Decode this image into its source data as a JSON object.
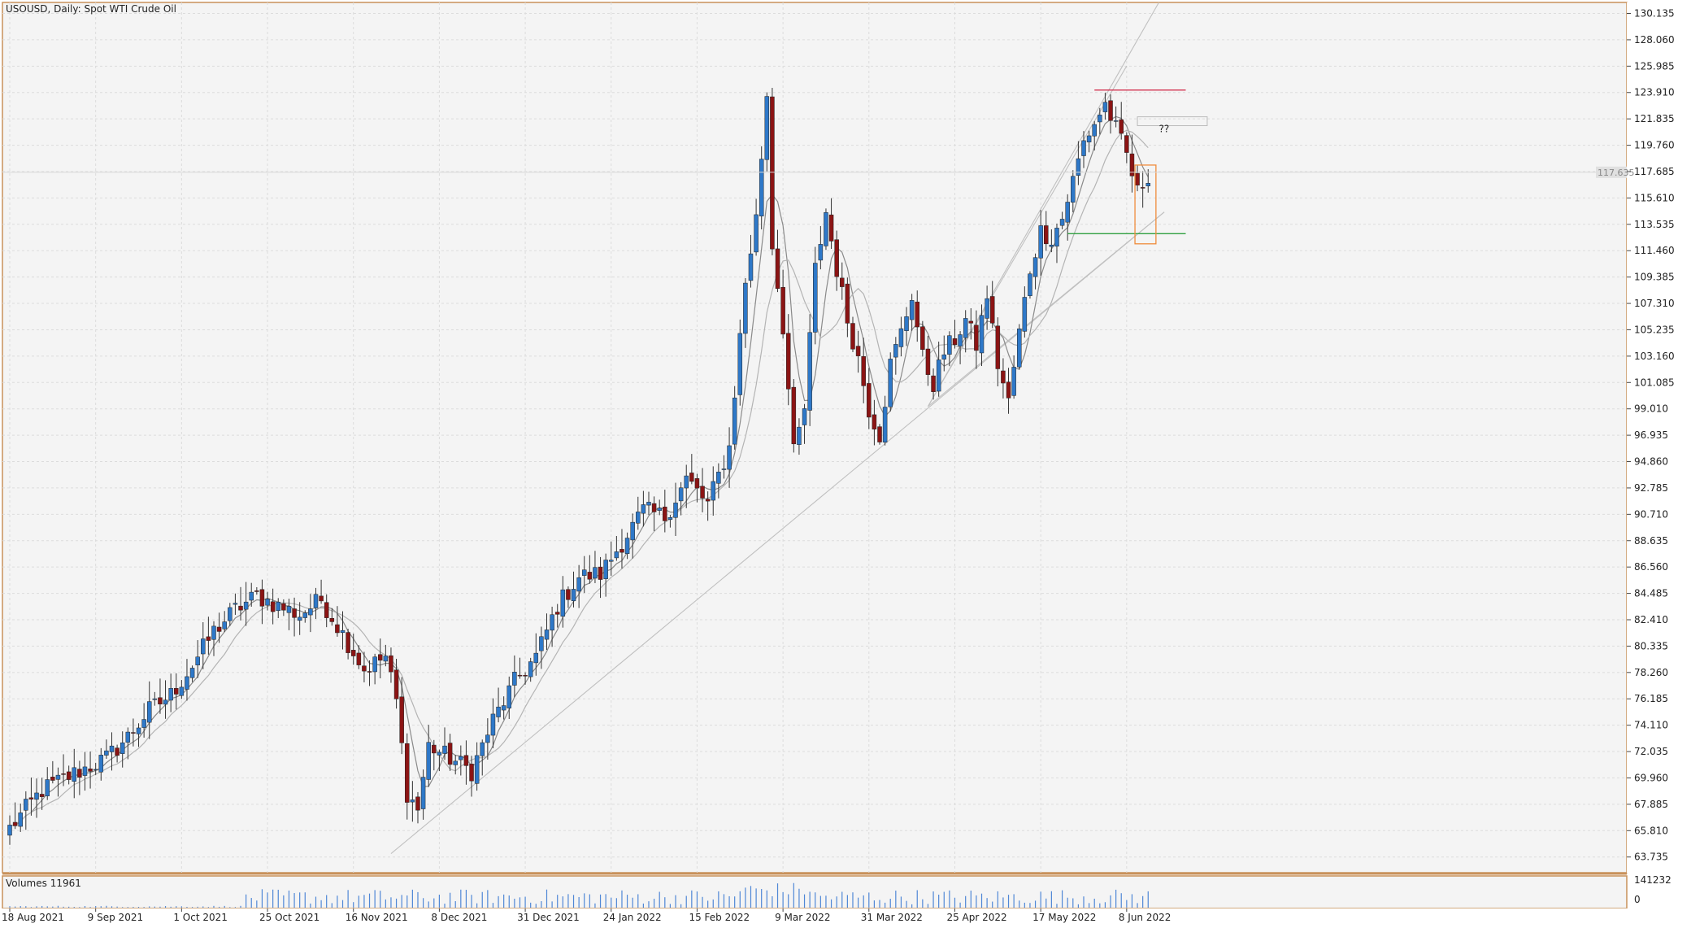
{
  "header": {
    "title": "USOUSD, Daily:  Spot WTI Crude Oil"
  },
  "volume_panel": {
    "label": "Volumes 11961",
    "scale_max": "141232",
    "scale_min": "0"
  },
  "annotations": {
    "question_label": "??",
    "current_price_label": "117.635"
  },
  "colors": {
    "background": "#f4f4f4",
    "frame": "#c8915a",
    "bull": "#2e78c8",
    "bear": "#8b1414",
    "ma": "#9a9a9a",
    "trendline": "#c0c0c0",
    "resistance": "#d02040",
    "support": "#30a040",
    "highlight_box": "#f08c3c",
    "volume": "#4f87d6"
  },
  "chart_data": {
    "type": "candlestick",
    "symbol": "USOUSD",
    "timeframe": "Daily",
    "ylim": [
      62.5,
      131.0
    ],
    "y_ticks": [
      "130.135",
      "128.060",
      "125.985",
      "123.910",
      "121.835",
      "119.760",
      "117.685",
      "115.610",
      "113.535",
      "111.460",
      "109.385",
      "107.310",
      "105.235",
      "103.160",
      "101.085",
      "99.010",
      "96.935",
      "94.860",
      "92.785",
      "90.710",
      "88.635",
      "86.560",
      "84.485",
      "82.410",
      "80.335",
      "78.260",
      "76.185",
      "74.110",
      "72.035",
      "69.960",
      "67.885",
      "65.810",
      "63.735"
    ],
    "x_labels": [
      "18 Aug 2021",
      "9 Sep 2021",
      "1 Oct 2021",
      "25 Oct 2021",
      "16 Nov 2021",
      "8 Dec 2021",
      "31 Dec 2021",
      "24 Jan 2022",
      "15 Feb 2022",
      "9 Mar 2022",
      "31 Mar 2022",
      "25 Apr 2022",
      "17 May 2022",
      "8 Jun 2022"
    ],
    "x_label_bar_index": [
      0,
      16,
      32,
      48,
      64,
      80,
      96,
      112,
      128,
      144,
      160,
      176,
      192,
      208
    ],
    "anchors": [
      [
        0,
        66.0
      ],
      [
        6,
        69.0
      ],
      [
        12,
        70.3
      ],
      [
        18,
        71.5
      ],
      [
        22,
        73.2
      ],
      [
        26,
        75.3
      ],
      [
        30,
        76.5
      ],
      [
        34,
        78.8
      ],
      [
        38,
        81.5
      ],
      [
        42,
        83.2
      ],
      [
        46,
        84.3
      ],
      [
        50,
        83.5
      ],
      [
        54,
        82.8
      ],
      [
        58,
        84.0
      ],
      [
        62,
        81.3
      ],
      [
        66,
        78.5
      ],
      [
        70,
        79.5
      ],
      [
        72,
        76.0
      ],
      [
        74,
        68.8
      ],
      [
        76,
        67.5
      ],
      [
        78,
        72.5
      ],
      [
        82,
        71.5
      ],
      [
        86,
        70.5
      ],
      [
        90,
        74.5
      ],
      [
        94,
        77.5
      ],
      [
        98,
        79.5
      ],
      [
        102,
        83.5
      ],
      [
        106,
        85.8
      ],
      [
        110,
        86.0
      ],
      [
        114,
        88.5
      ],
      [
        118,
        91.0
      ],
      [
        122,
        90.5
      ],
      [
        126,
        93.5
      ],
      [
        130,
        91.5
      ],
      [
        134,
        96.0
      ],
      [
        137,
        109.0
      ],
      [
        139,
        114.0
      ],
      [
        141,
        123.8
      ],
      [
        142,
        112.0
      ],
      [
        144,
        105.5
      ],
      [
        146,
        95.5
      ],
      [
        148,
        99.0
      ],
      [
        150,
        110.0
      ],
      [
        152,
        114.5
      ],
      [
        154,
        110.0
      ],
      [
        156,
        106.0
      ],
      [
        158,
        103.0
      ],
      [
        160,
        99.0
      ],
      [
        162,
        97.0
      ],
      [
        164,
        102.5
      ],
      [
        166,
        105.0
      ],
      [
        168,
        108.0
      ],
      [
        170,
        103.0
      ],
      [
        172,
        101.0
      ],
      [
        174,
        103.5
      ],
      [
        176,
        104.5
      ],
      [
        178,
        106.0
      ],
      [
        180,
        104.0
      ],
      [
        182,
        108.0
      ],
      [
        184,
        102.5
      ],
      [
        186,
        99.5
      ],
      [
        188,
        105.0
      ],
      [
        190,
        110.0
      ],
      [
        192,
        113.0
      ],
      [
        194,
        112.5
      ],
      [
        196,
        114.0
      ],
      [
        198,
        117.0
      ],
      [
        200,
        120.0
      ],
      [
        202,
        121.5
      ],
      [
        204,
        123.0
      ],
      [
        206,
        121.0
      ],
      [
        208,
        119.0
      ],
      [
        210,
        116.0
      ],
      [
        212,
        117.5
      ]
    ],
    "moving_averages": [
      {
        "period": 5,
        "style": "dark-gray"
      },
      {
        "period": 10,
        "style": "light-gray"
      }
    ],
    "horizontal_levels": [
      {
        "name": "resistance",
        "price": 124.1
      },
      {
        "name": "support",
        "price": 112.8
      }
    ],
    "current_price": 117.635,
    "volume": {
      "max": 141232
    }
  }
}
